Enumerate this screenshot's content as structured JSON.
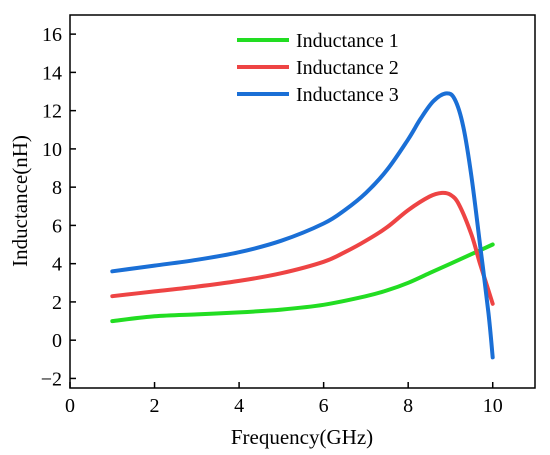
{
  "chart_data": {
    "type": "line",
    "title": "",
    "xlabel": "Frequency(GHz)",
    "ylabel": "Inductance(nH)",
    "xlim": [
      0,
      11
    ],
    "ylim": [
      -2.5,
      17
    ],
    "xticks": [
      0,
      2,
      4,
      6,
      8,
      10
    ],
    "yticks": [
      -2,
      0,
      2,
      4,
      6,
      8,
      10,
      12,
      14,
      16
    ],
    "ytick_labels": [
      "−2",
      "0",
      "2",
      "4",
      "6",
      "8",
      "10",
      "12",
      "14",
      "16"
    ],
    "grid": false,
    "legend_position": "top-center",
    "series": [
      {
        "name": "Inductance 1",
        "color": "#22dd22",
        "x": [
          1,
          2,
          3,
          4,
          5,
          6,
          7,
          7.5,
          8,
          8.5,
          9,
          9.5,
          10
        ],
        "y": [
          1.0,
          1.25,
          1.35,
          1.45,
          1.6,
          1.85,
          2.3,
          2.6,
          3.0,
          3.5,
          4.0,
          4.5,
          5.0
        ]
      },
      {
        "name": "Inductance 2",
        "color": "#ee4444",
        "x": [
          1,
          2,
          3,
          4,
          5,
          6,
          6.5,
          7,
          7.5,
          8,
          8.5,
          8.8,
          9,
          9.2,
          9.5,
          9.7,
          10
        ],
        "y": [
          2.3,
          2.55,
          2.8,
          3.1,
          3.5,
          4.1,
          4.6,
          5.2,
          5.9,
          6.8,
          7.5,
          7.7,
          7.6,
          7.1,
          5.5,
          4.0,
          1.9
        ]
      },
      {
        "name": "Inductance 3",
        "color": "#1a6fd6",
        "x": [
          1,
          2,
          3,
          4,
          5,
          6,
          6.5,
          7,
          7.5,
          8,
          8.3,
          8.6,
          8.9,
          9.1,
          9.3,
          9.5,
          9.7,
          9.9,
          10
        ],
        "y": [
          3.6,
          3.9,
          4.2,
          4.6,
          5.2,
          6.1,
          6.8,
          7.7,
          8.9,
          10.5,
          11.6,
          12.5,
          12.9,
          12.6,
          11.2,
          8.5,
          5.0,
          1.4,
          -0.9
        ]
      }
    ]
  }
}
